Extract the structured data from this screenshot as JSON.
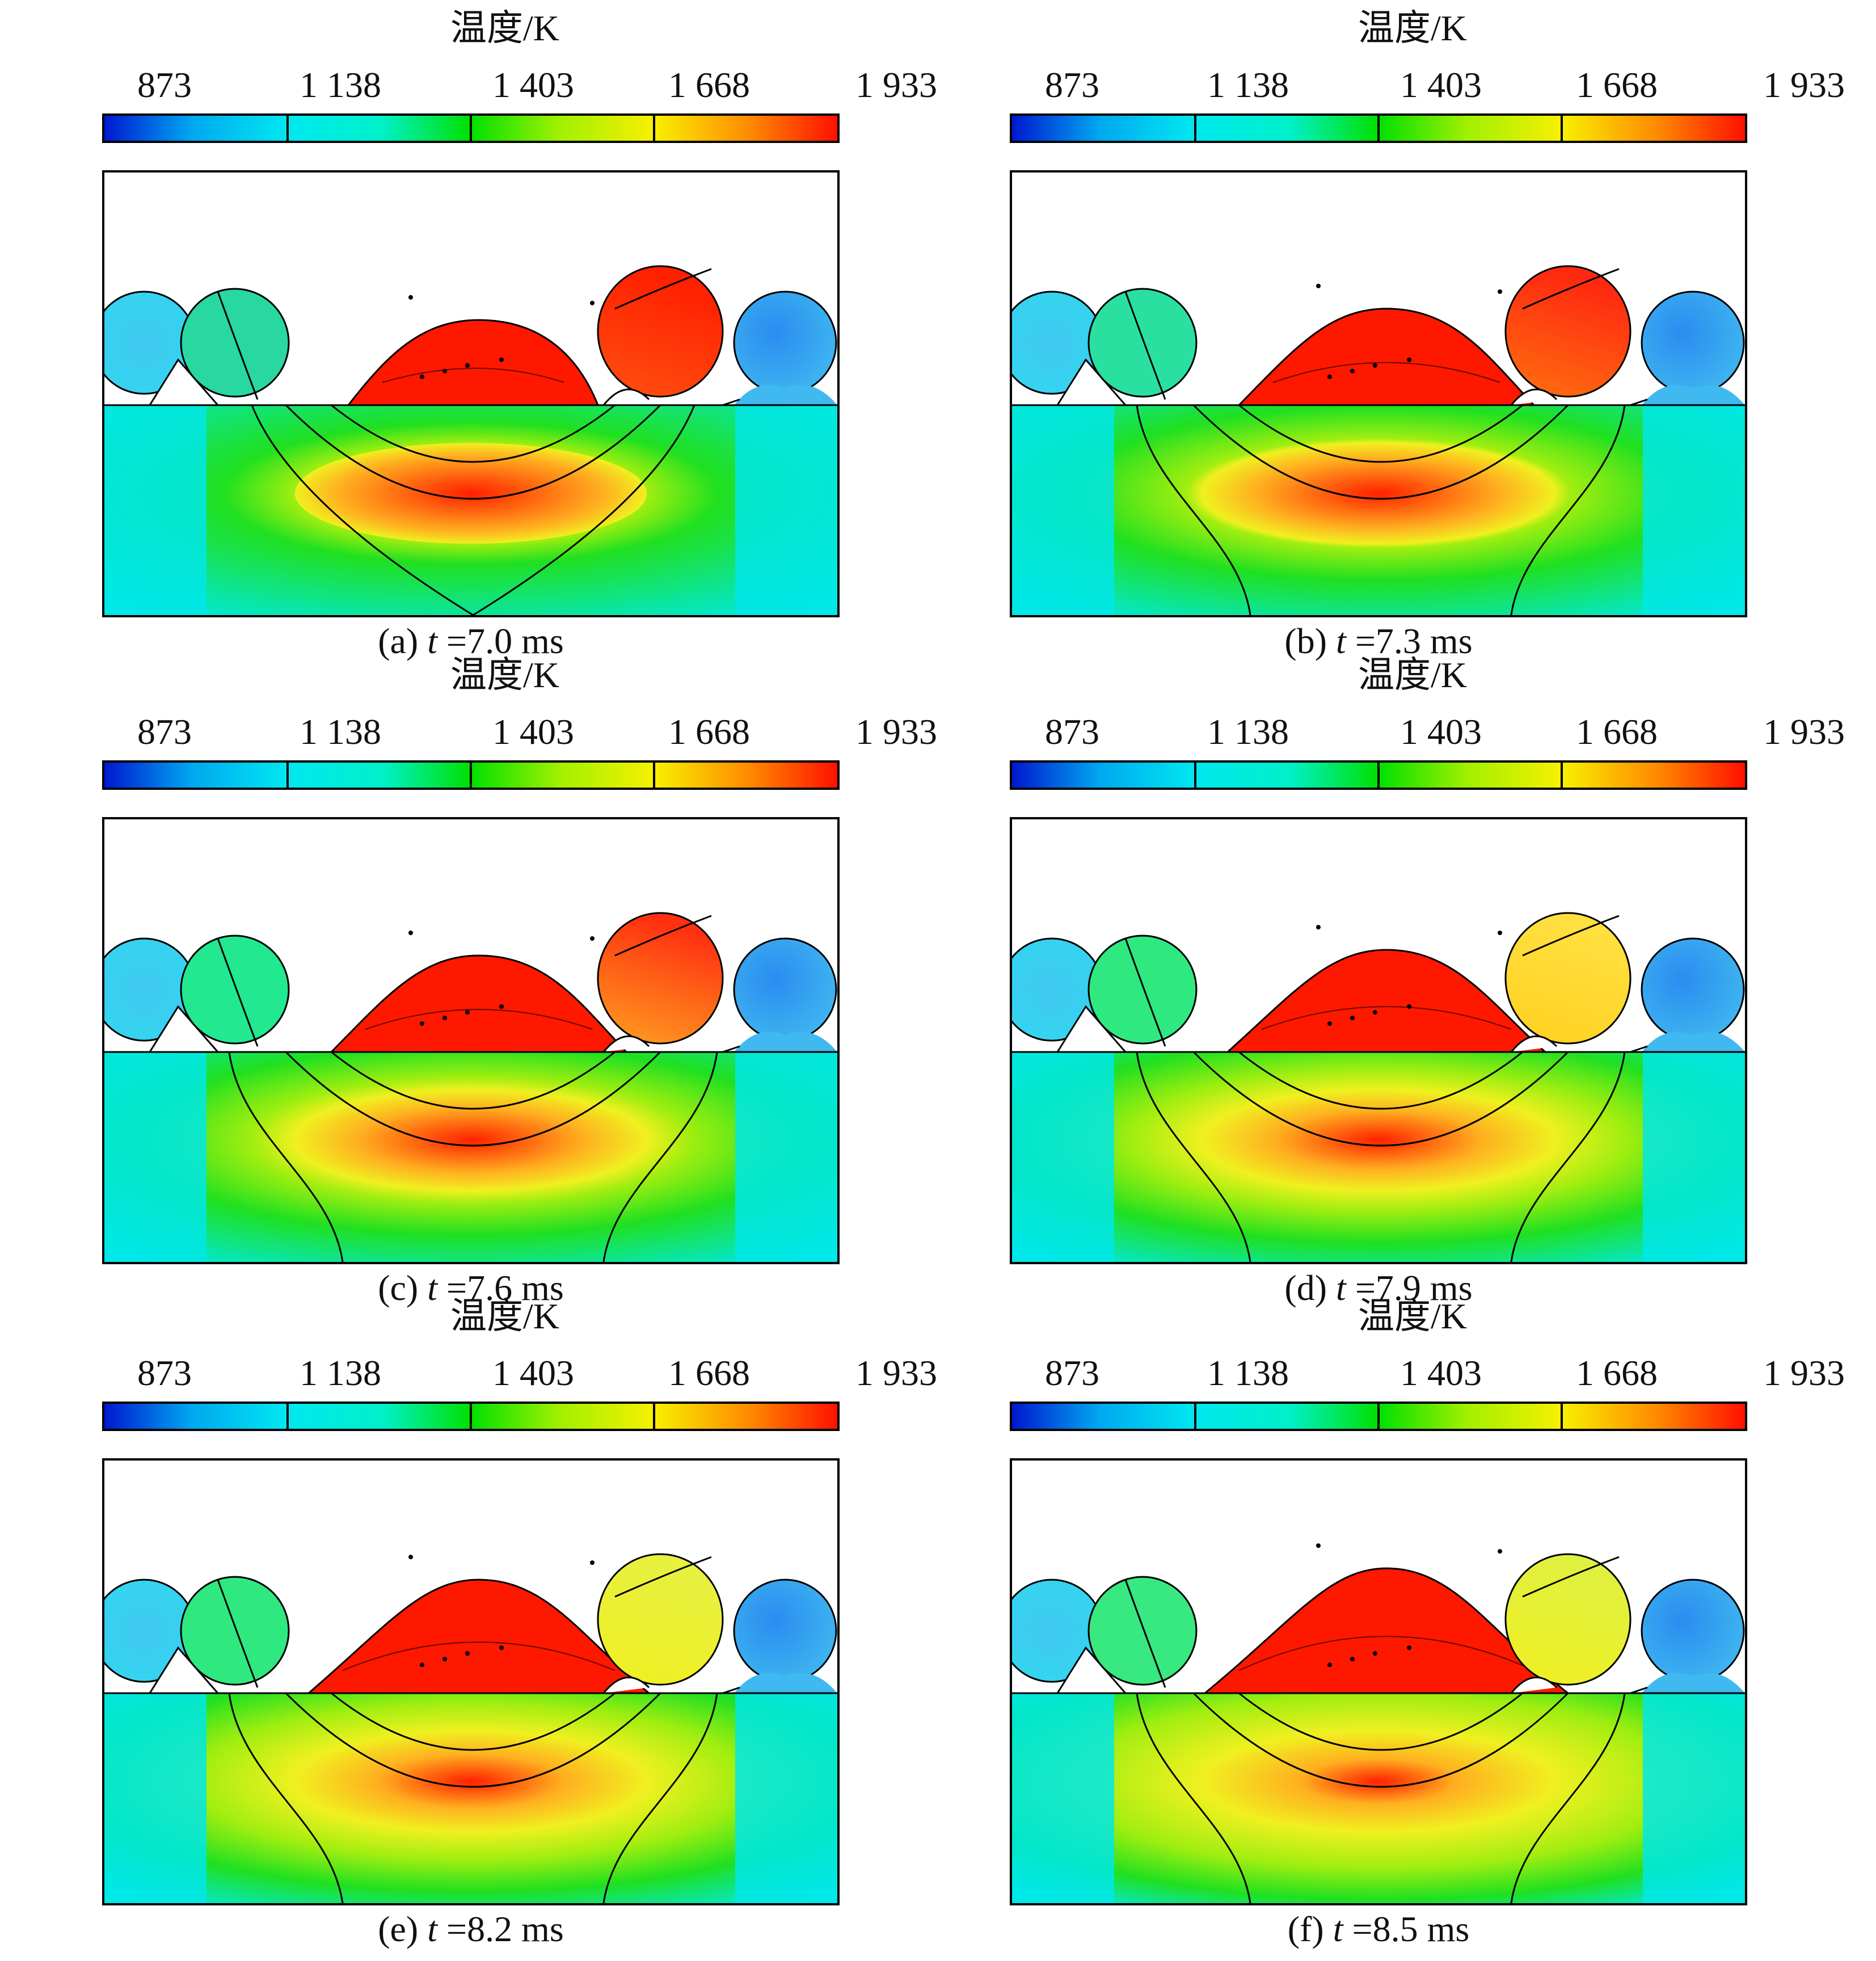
{
  "colorbar": {
    "title": "温度/K",
    "ticks": [
      "873",
      "1 138",
      "1 403",
      "1 668",
      "1 933"
    ],
    "colors": [
      "#0018d0",
      "#00e8f0",
      "#00e000",
      "#f8f000",
      "#ff1000"
    ]
  },
  "panels": [
    {
      "label": "(a)",
      "var": "t",
      "value": "=7.0 ms"
    },
    {
      "label": "(b)",
      "var": "t",
      "value": "=7.3 ms"
    },
    {
      "label": "(c)",
      "var": "t",
      "value": "=7.6 ms"
    },
    {
      "label": "(d)",
      "var": "t",
      "value": "=7.9 ms"
    },
    {
      "label": "(e)",
      "var": "t",
      "value": "=8.2 ms"
    },
    {
      "label": "(f)",
      "var": "t",
      "value": "=8.5 ms"
    }
  ]
}
